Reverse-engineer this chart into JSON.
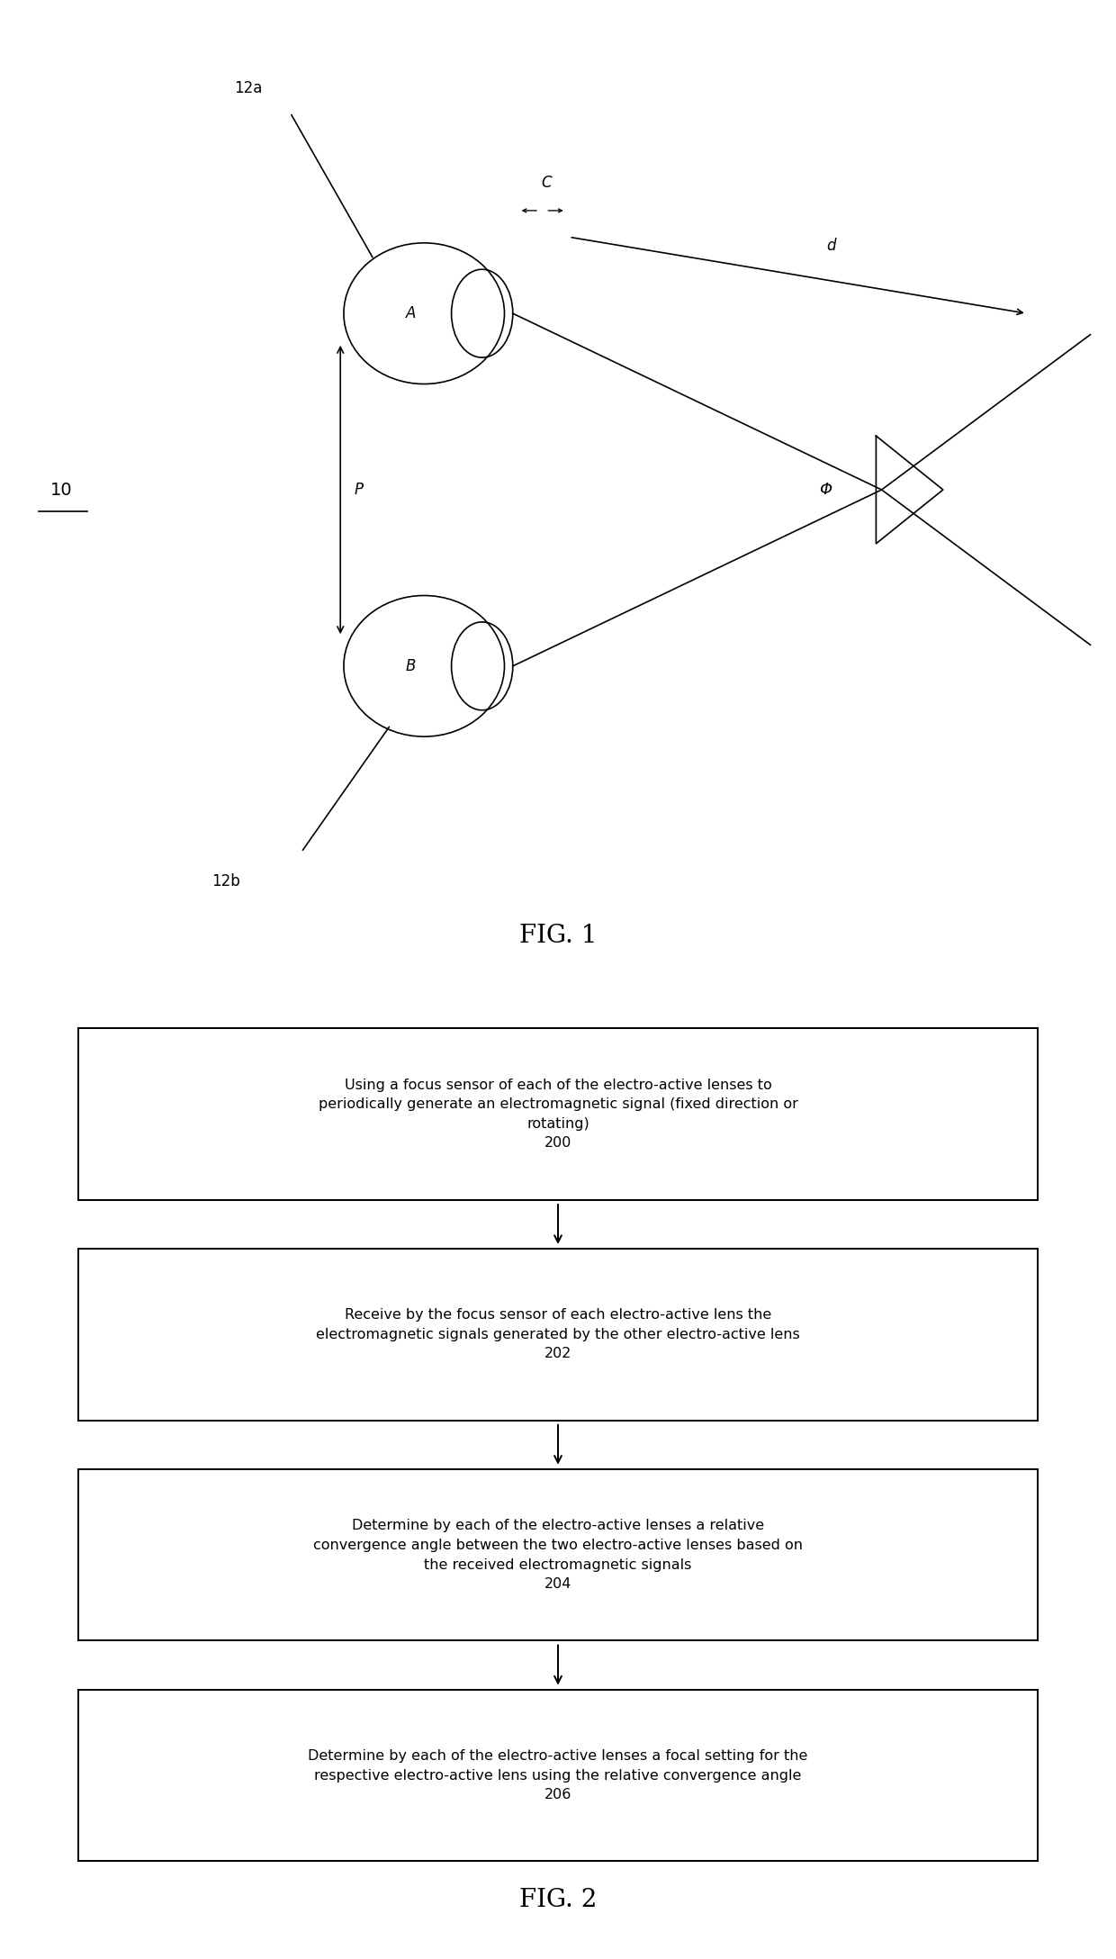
{
  "fig_width": 12.4,
  "fig_height": 21.76,
  "bg_color": "#ffffff",
  "fig1_label": "FIG. 1",
  "fig2_label": "FIG. 2",
  "label_10": "10",
  "label_12a": "12a",
  "label_12b": "12b",
  "label_A": "A",
  "label_B": "B",
  "label_C": "C",
  "label_d": "d",
  "label_P": "P",
  "label_phi": "Φ",
  "box1_text": "Using a focus sensor of each of the electro-active lenses to\nperiodically generate an electromagnetic signal (fixed direction or\nrotating)\n200",
  "box2_text": "Receive by the focus sensor of each electro-active lens the\nelectromagnetic signals generated by the other electro-active lens\n202",
  "box3_text": "Determine by each of the electro-active lenses a relative\nconvergence angle between the two electro-active lenses based on\nthe received electromagnetic signals\n204",
  "box4_text": "Determine by each of the electro-active lenses a focal setting for the\nrespective electro-active lens using the relative convergence angle\n206",
  "line_color": "#000000",
  "line_width": 1.2,
  "font_size_label": 12,
  "font_size_fig": 20,
  "font_size_box": 11.5
}
